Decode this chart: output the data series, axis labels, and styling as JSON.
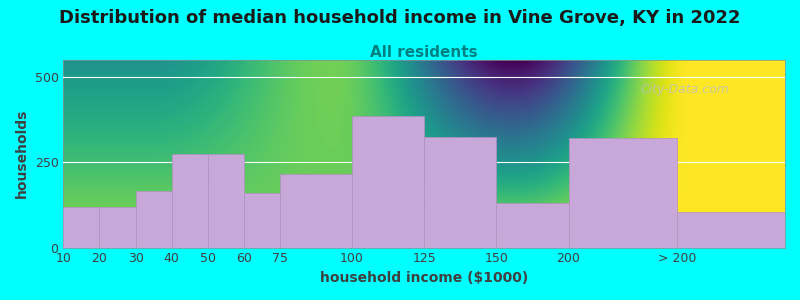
{
  "title": "Distribution of median household income in Vine Grove, KY in 2022",
  "subtitle": "All residents",
  "xlabel": "household income ($1000)",
  "ylabel": "households",
  "background_color": "#00FFFF",
  "plot_bg_gradient_top": "#e8f5d0",
  "plot_bg_gradient_bottom": "#f8f4fc",
  "bar_color": "#c8a8d8",
  "bar_edge_color": "#b090c0",
  "xlabels": [
    "10",
    "20",
    "30",
    "40",
    "50",
    "60",
    "75",
    "100",
    "125",
    "150",
    "200",
    "> 200"
  ],
  "values": [
    120,
    120,
    165,
    275,
    275,
    160,
    215,
    385,
    325,
    130,
    320,
    105
  ],
  "bar_lefts": [
    0,
    1,
    2,
    3,
    4,
    5,
    6,
    8,
    10,
    12,
    14,
    17
  ],
  "bar_widths": [
    1,
    1,
    1,
    1,
    1,
    1,
    2,
    2,
    2,
    2,
    3,
    3
  ],
  "xlim": [
    0,
    20
  ],
  "ylim": [
    0,
    550
  ],
  "yticks": [
    0,
    250,
    500
  ],
  "watermark": "City-Data.com",
  "title_fontsize": 13,
  "subtitle_fontsize": 11,
  "axis_label_fontsize": 10,
  "tick_fontsize": 9
}
